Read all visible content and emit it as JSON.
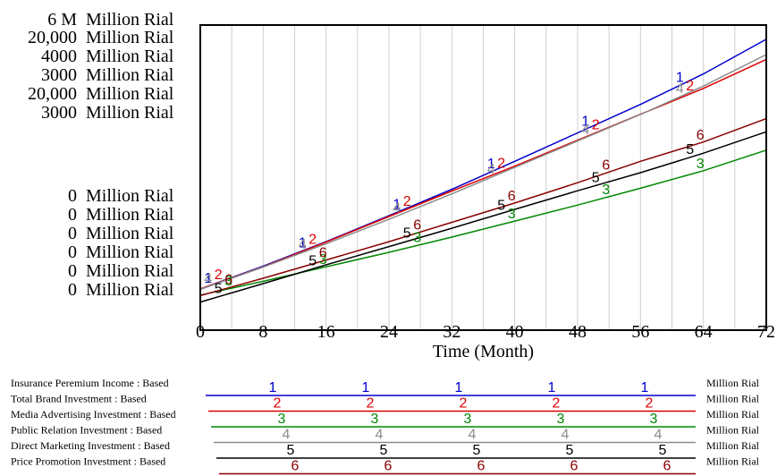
{
  "chart_data": {
    "type": "line",
    "xlabel": "Time (Month)",
    "x_ticks": [
      0,
      8,
      16,
      24,
      32,
      40,
      48,
      56,
      64,
      72
    ],
    "xlim": [
      0,
      72
    ],
    "grid": true,
    "y_axes": [
      {
        "max": "6 M",
        "min": "0",
        "unit": "Million Rial"
      },
      {
        "max": "20,000",
        "min": "0",
        "unit": "Million Rial"
      },
      {
        "max": "4000",
        "min": "0",
        "unit": "Million Rial"
      },
      {
        "max": "3000",
        "min": "0",
        "unit": "Million Rial"
      },
      {
        "max": "20,000",
        "min": "0",
        "unit": "Million Rial"
      },
      {
        "max": "3000",
        "min": "0",
        "unit": "Million Rial"
      }
    ],
    "series": [
      {
        "id": "1",
        "name": "Insurance Peremium Income : Based",
        "unit": "Million Rial",
        "color": "#0000cc",
        "x": [
          0,
          8,
          16,
          24,
          32,
          40,
          48,
          56,
          64,
          72
        ],
        "y": [
          0.81,
          1.26,
          1.74,
          2.25,
          2.77,
          3.32,
          3.88,
          4.44,
          5.04,
          5.72
        ]
      },
      {
        "id": "2",
        "name": "Total Brand Investment : Based",
        "unit": "Million Rial",
        "color": "#dd0000",
        "x": [
          0,
          8,
          16,
          24,
          32,
          40,
          48,
          56,
          64,
          72
        ],
        "y": [
          2700,
          4150,
          5770,
          7450,
          9120,
          10750,
          12450,
          14150,
          15850,
          17750
        ]
      },
      {
        "id": "3",
        "name": "Media Advertising Investment : Based",
        "unit": "Million Rial",
        "color": "#008800",
        "x": [
          0,
          8,
          16,
          24,
          32,
          40,
          48,
          56,
          64,
          72
        ],
        "y": [
          460,
          640,
          830,
          1020,
          1220,
          1430,
          1640,
          1860,
          2090,
          2360
        ]
      },
      {
        "id": "4",
        "name": "Public Relation Investment : Based",
        "unit": "Million Rial",
        "color": "#8c8c8c",
        "x": [
          0,
          8,
          16,
          24,
          32,
          40,
          48,
          56,
          64,
          72
        ],
        "y": [
          400,
          620,
          850,
          1090,
          1340,
          1600,
          1860,
          2120,
          2400,
          2710
        ]
      },
      {
        "id": "5",
        "name": "Direct Marketing Investment : Based",
        "unit": "Million Rial",
        "color": "#000000",
        "x": [
          0,
          8,
          16,
          24,
          32,
          40,
          48,
          56,
          64,
          72
        ],
        "y": [
          1840,
          3050,
          4280,
          5480,
          6680,
          7920,
          9140,
          10320,
          11600,
          13000
        ]
      },
      {
        "id": "6",
        "name": "Price Promotion Investment : Based",
        "unit": "Million Rial",
        "color": "#880000",
        "x": [
          0,
          8,
          16,
          24,
          32,
          40,
          48,
          56,
          64,
          72
        ],
        "y": [
          340,
          510,
          690,
          870,
          1060,
          1250,
          1450,
          1660,
          1850,
          2080
        ]
      }
    ]
  }
}
